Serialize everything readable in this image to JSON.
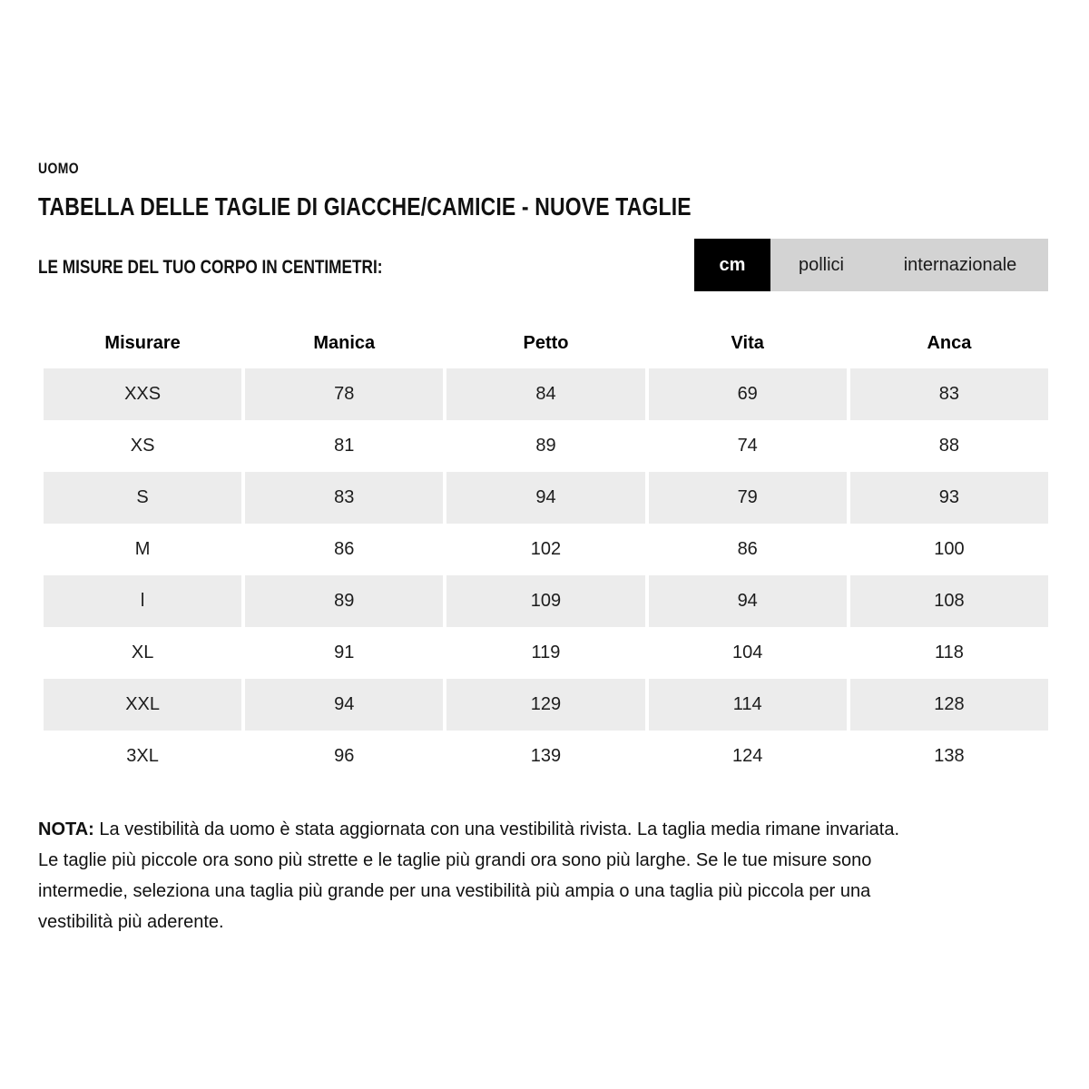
{
  "page": {
    "category": "UOMO",
    "title": "TABELLA DELLE TAGLIE DI GIACCHE/CAMICIE - NUOVE TAGLIE",
    "subtitle": "LE MISURE DEL TUO CORPO IN CENTIMETRI:"
  },
  "unit_tabs": {
    "items": [
      {
        "label": "cm",
        "active": true
      },
      {
        "label": "pollici",
        "active": false
      },
      {
        "label": "internazionale",
        "active": false
      }
    ]
  },
  "size_table": {
    "columns": [
      "Misurare",
      "Manica",
      "Petto",
      "Vita",
      "Anca"
    ],
    "rows": [
      {
        "size": "XXS",
        "values": [
          "78",
          "84",
          "69",
          "83"
        ]
      },
      {
        "size": "XS",
        "values": [
          "81",
          "89",
          "74",
          "88"
        ]
      },
      {
        "size": "S",
        "values": [
          "83",
          "94",
          "79",
          "93"
        ]
      },
      {
        "size": "M",
        "values": [
          "86",
          "102",
          "86",
          "100"
        ]
      },
      {
        "size": "l",
        "values": [
          "89",
          "109",
          "94",
          "108"
        ]
      },
      {
        "size": "XL",
        "values": [
          "91",
          "119",
          "104",
          "118"
        ]
      },
      {
        "size": "XXL",
        "values": [
          "94",
          "129",
          "114",
          "128"
        ]
      },
      {
        "size": "3XL",
        "values": [
          "96",
          "139",
          "124",
          "138"
        ]
      }
    ]
  },
  "note": {
    "label": "NOTA:",
    "text": " La vestibilità da uomo è stata aggiornata con una vestibilità rivista. La taglia media rimane invariata. Le taglie più piccole ora sono più strette e le taglie più grandi ora sono più larghe. Se le tue misure sono intermedie, seleziona una taglia più grande per una vestibilità più ampia o una taglia più piccola per una vestibilità più aderente."
  },
  "colors": {
    "row_shaded": "#ececec",
    "tab_bar_bg": "#d3d3d3",
    "tab_active_bg": "#000000",
    "tab_active_text": "#ffffff",
    "text": "#111111"
  }
}
